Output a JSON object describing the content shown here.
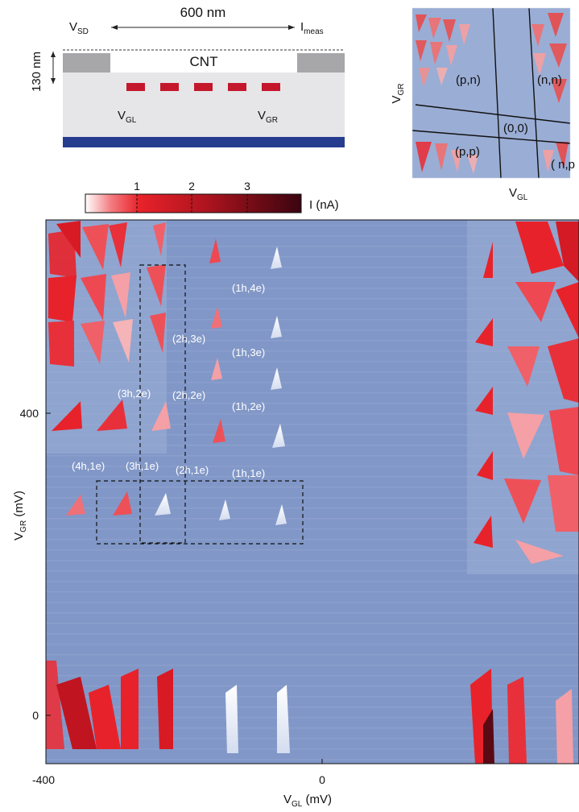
{
  "schematic": {
    "v_sd": "V",
    "v_sd_sub": "SD",
    "i_meas": "I",
    "i_meas_sub": "meas",
    "length": "600 nm",
    "height": "130 nm",
    "cnt": "CNT",
    "v_gl": "V",
    "v_gl_sub": "GL",
    "v_gr": "V",
    "v_gr_sub": "GR",
    "colors": {
      "contact": "#a7a7a9",
      "gate": "#c4172c",
      "substrate": "#e6e6e8",
      "bottom": "#263c8e"
    }
  },
  "inset": {
    "ylabel": "V",
    "ylabel_sub": "GR",
    "xlabel": "V",
    "xlabel_sub": "GL",
    "regions": [
      "(p,n)",
      "(n,n)",
      "(0,0)",
      "(p,p)",
      "( n,p"
    ]
  },
  "colorbar": {
    "label": "I (nA)",
    "ticks": [
      "1",
      "2",
      "3"
    ],
    "colors": [
      "#ffffff",
      "#e8222a",
      "#a0101c",
      "#3a0510"
    ]
  },
  "chart_data": {
    "type": "heatmap",
    "xlabel": "V",
    "xlabel_sub": "GL",
    "xlabel_unit": " (mV)",
    "ylabel": "V",
    "ylabel_sub": "GR",
    "ylabel_unit": " (mV)",
    "x_ticks": [
      "-400",
      "0"
    ],
    "y_ticks": [
      "400",
      "0"
    ],
    "background_color": "#8197c7",
    "annotations": [
      "(1h,4e)",
      "(2h,3e)",
      "(1h,3e)",
      "(3h,2e)",
      "(2h,2e)",
      "(1h,2e)",
      "(4h,1e)",
      "(3h,1e)",
      "(2h,1e)",
      "(1h,1e)"
    ]
  }
}
